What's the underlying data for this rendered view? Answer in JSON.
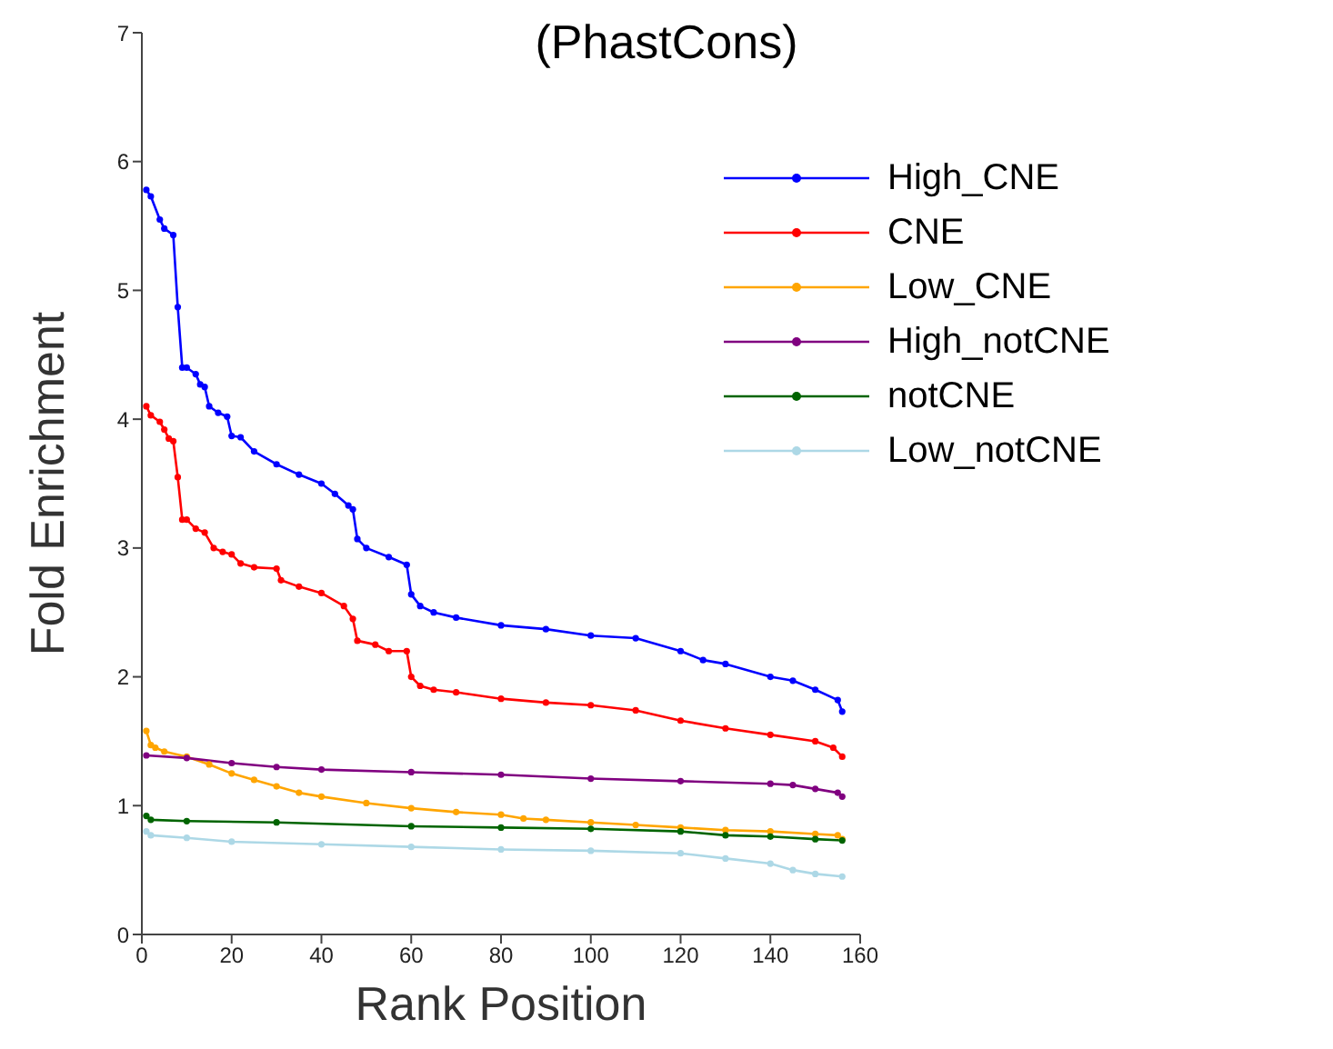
{
  "chart_data": {
    "type": "line",
    "title": "(PhastCons)",
    "xlabel": "Rank Position",
    "ylabel": "Fold Enrichment",
    "xlim": [
      0,
      160
    ],
    "xticks": [
      0,
      20,
      40,
      60,
      80,
      100,
      120,
      140,
      160
    ],
    "ylim": [
      0,
      7
    ],
    "yticks": [
      0,
      1,
      2,
      3,
      4,
      5,
      6,
      7
    ],
    "grid": false,
    "legend": "top right",
    "marker": "circle",
    "line_style": "solid",
    "series": [
      {
        "name": "High_CNE",
        "color": "#0000ff",
        "x": [
          1,
          2,
          4,
          5,
          7,
          8,
          9,
          10,
          12,
          13,
          14,
          15,
          17,
          19,
          20,
          22,
          25,
          30,
          35,
          40,
          43,
          46,
          47,
          48,
          50,
          55,
          59,
          60,
          62,
          65,
          70,
          80,
          90,
          100,
          110,
          120,
          125,
          130,
          140,
          145,
          150,
          155,
          156
        ],
        "values": [
          5.78,
          5.73,
          5.55,
          5.48,
          5.43,
          4.87,
          4.4,
          4.4,
          4.35,
          4.27,
          4.25,
          4.1,
          4.05,
          4.02,
          3.87,
          3.86,
          3.75,
          3.65,
          3.57,
          3.5,
          3.42,
          3.33,
          3.3,
          3.07,
          3.0,
          2.93,
          2.87,
          2.64,
          2.55,
          2.5,
          2.46,
          2.4,
          2.37,
          2.32,
          2.3,
          2.2,
          2.13,
          2.1,
          2.0,
          1.97,
          1.9,
          1.82,
          1.73
        ]
      },
      {
        "name": "CNE",
        "color": "#ff0000",
        "x": [
          1,
          2,
          4,
          5,
          6,
          7,
          8,
          9,
          10,
          12,
          14,
          16,
          18,
          20,
          22,
          25,
          30,
          31,
          35,
          40,
          45,
          47,
          48,
          52,
          55,
          59,
          60,
          62,
          65,
          70,
          80,
          90,
          100,
          110,
          120,
          130,
          140,
          150,
          154,
          156
        ],
        "values": [
          4.1,
          4.03,
          3.98,
          3.92,
          3.85,
          3.83,
          3.55,
          3.22,
          3.22,
          3.15,
          3.12,
          3.0,
          2.97,
          2.95,
          2.88,
          2.85,
          2.84,
          2.75,
          2.7,
          2.65,
          2.55,
          2.45,
          2.28,
          2.25,
          2.2,
          2.2,
          2.0,
          1.93,
          1.9,
          1.88,
          1.83,
          1.8,
          1.78,
          1.74,
          1.66,
          1.6,
          1.55,
          1.5,
          1.45,
          1.38
        ]
      },
      {
        "name": "Low_CNE",
        "color": "#ffa500",
        "x": [
          1,
          2,
          3,
          5,
          10,
          15,
          20,
          25,
          30,
          35,
          40,
          50,
          60,
          70,
          80,
          85,
          90,
          100,
          110,
          120,
          130,
          140,
          150,
          155,
          156
        ],
        "values": [
          1.58,
          1.47,
          1.45,
          1.42,
          1.38,
          1.32,
          1.25,
          1.2,
          1.15,
          1.1,
          1.07,
          1.02,
          0.98,
          0.95,
          0.93,
          0.9,
          0.89,
          0.87,
          0.85,
          0.83,
          0.81,
          0.8,
          0.78,
          0.77,
          0.74
        ]
      },
      {
        "name": "High_notCNE",
        "color": "#800080",
        "x": [
          1,
          10,
          20,
          30,
          40,
          60,
          80,
          100,
          120,
          140,
          145,
          150,
          155,
          156
        ],
        "values": [
          1.39,
          1.37,
          1.33,
          1.3,
          1.28,
          1.26,
          1.24,
          1.21,
          1.19,
          1.17,
          1.16,
          1.13,
          1.1,
          1.07
        ]
      },
      {
        "name": "notCNE",
        "color": "#006400",
        "x": [
          1,
          2,
          10,
          30,
          60,
          80,
          100,
          120,
          130,
          140,
          150,
          156
        ],
        "values": [
          0.92,
          0.89,
          0.88,
          0.87,
          0.84,
          0.83,
          0.82,
          0.8,
          0.77,
          0.76,
          0.74,
          0.73
        ]
      },
      {
        "name": "Low_notCNE",
        "color": "#add8e6",
        "x": [
          1,
          2,
          10,
          20,
          40,
          60,
          80,
          100,
          120,
          130,
          140,
          145,
          150,
          156
        ],
        "values": [
          0.8,
          0.77,
          0.75,
          0.72,
          0.7,
          0.68,
          0.66,
          0.65,
          0.63,
          0.59,
          0.55,
          0.5,
          0.47,
          0.45
        ]
      }
    ]
  }
}
